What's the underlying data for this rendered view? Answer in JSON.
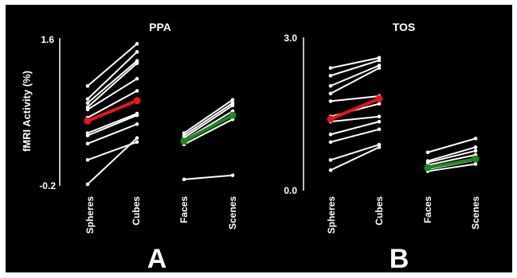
{
  "chart_data": [
    {
      "type": "line",
      "panel_label": "A",
      "title": "PPA",
      "ylabel": "fMRI Activity (%)",
      "ylim": [
        -0.2,
        1.6
      ],
      "yticks": [
        "1.6",
        "-0.2"
      ],
      "categories": [
        "Spheres",
        "Cubes",
        "Faces",
        "Scenes"
      ],
      "colors": {
        "individual": "#ffffff",
        "object_mean": "#e8141c",
        "face_scene_mean": "#1a8a1a",
        "background": "#000000"
      },
      "object_pairs": [
        [
          1.03,
          1.55
        ],
        [
          0.87,
          1.45
        ],
        [
          0.82,
          1.34
        ],
        [
          0.77,
          1.31
        ],
        [
          0.74,
          1.12
        ],
        [
          0.64,
          0.97
        ],
        [
          0.45,
          0.69
        ],
        [
          0.42,
          0.67
        ],
        [
          0.32,
          0.56
        ],
        [
          0.12,
          0.34
        ],
        [
          -0.18,
          0.39
        ]
      ],
      "object_mean": [
        0.6,
        0.85
      ],
      "face_scene_pairs": [
        [
          0.45,
          0.86
        ],
        [
          0.42,
          0.82
        ],
        [
          0.39,
          0.79
        ],
        [
          0.36,
          0.72
        ],
        [
          0.34,
          0.68
        ],
        [
          0.31,
          0.62
        ],
        [
          -0.12,
          -0.07
        ]
      ],
      "face_scene_mean": [
        0.35,
        0.67
      ]
    },
    {
      "type": "line",
      "panel_label": "B",
      "title": "TOS",
      "ylabel": "",
      "ylim": [
        0.0,
        3.0
      ],
      "yticks": [
        "3.0",
        "0.0"
      ],
      "categories": [
        "Spheres",
        "Cubes",
        "Faces",
        "Scenes"
      ],
      "colors": {
        "individual": "#ffffff",
        "object_mean": "#e8141c",
        "face_scene_mean": "#1a8a1a",
        "background": "#000000"
      },
      "object_pairs": [
        [
          2.4,
          2.6
        ],
        [
          2.25,
          2.55
        ],
        [
          2.05,
          2.45
        ],
        [
          1.9,
          2.4
        ],
        [
          1.75,
          1.85
        ],
        [
          1.45,
          1.7
        ],
        [
          1.35,
          1.45
        ],
        [
          1.1,
          1.35
        ],
        [
          0.95,
          1.2
        ],
        [
          0.6,
          0.9
        ],
        [
          0.4,
          0.85
        ]
      ],
      "object_mean": [
        1.4,
        1.8
      ],
      "face_scene_pairs": [
        [
          0.75,
          1.02
        ],
        [
          0.58,
          0.85
        ],
        [
          0.55,
          0.78
        ],
        [
          0.5,
          0.7
        ],
        [
          0.42,
          0.6
        ],
        [
          0.38,
          0.52
        ]
      ],
      "face_scene_mean": [
        0.45,
        0.62
      ]
    }
  ]
}
